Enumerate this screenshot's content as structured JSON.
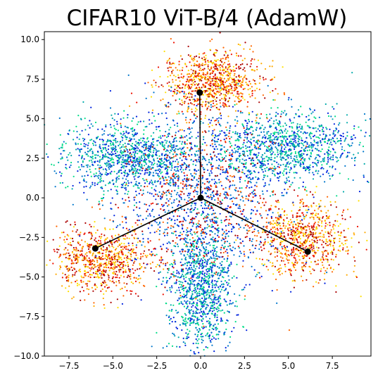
{
  "chart_data": {
    "type": "scatter",
    "title": "CIFAR10 ViT-B/4 (AdamW)",
    "xlabel": "",
    "ylabel": "",
    "xlim": [
      -8.9,
      9.7
    ],
    "ylim": [
      -10.0,
      10.5
    ],
    "grid": false,
    "x_ticks": [
      -7.5,
      -5.0,
      -2.5,
      0.0,
      2.5,
      5.0,
      7.5
    ],
    "x_tick_labels": [
      "−7.5",
      "−5.0",
      "−2.5",
      "0.0",
      "2.5",
      "5.0",
      "7.5"
    ],
    "y_ticks": [
      -10.0,
      -7.5,
      -5.0,
      -2.5,
      0.0,
      2.5,
      5.0,
      7.5,
      10.0
    ],
    "y_tick_labels": [
      "−10.0",
      "−7.5",
      "−5.0",
      "−2.5",
      "0.0",
      "2.5",
      "5.0",
      "7.5",
      "10.0"
    ],
    "colormap": [
      "#0022dd",
      "#0077cc",
      "#00aaaa",
      "#00dd88",
      "#ffe000",
      "#ffaa00",
      "#ff6600",
      "#ee1100",
      "#aa0000"
    ],
    "point_clusters": [
      {
        "label": "top",
        "center": [
          0.6,
          7.3
        ],
        "spread": [
          1.4,
          1.0
        ],
        "color_range": [
          4,
          8
        ],
        "count": 900
      },
      {
        "label": "lower-left",
        "center": [
          -5.6,
          -3.9
        ],
        "spread": [
          1.4,
          1.0
        ],
        "color_range": [
          4,
          8
        ],
        "count": 800
      },
      {
        "label": "lower-right",
        "center": [
          5.8,
          -2.6
        ],
        "spread": [
          1.3,
          1.2
        ],
        "color_range": [
          4,
          8
        ],
        "count": 800
      },
      {
        "label": "upper-left arm",
        "center": [
          -4.0,
          2.6
        ],
        "spread": [
          2.0,
          1.1
        ],
        "color_range": [
          0,
          3
        ],
        "count": 1100
      },
      {
        "label": "upper-right arm",
        "center": [
          4.8,
          3.2
        ],
        "spread": [
          2.0,
          1.1
        ],
        "color_range": [
          0,
          3
        ],
        "count": 1100
      },
      {
        "label": "bottom arm",
        "center": [
          0.0,
          -5.6
        ],
        "spread": [
          0.9,
          2.2
        ],
        "color_range": [
          0,
          3
        ],
        "count": 1100
      },
      {
        "label": "inner blue",
        "center": [
          0.0,
          0.0
        ],
        "spread": [
          2.6,
          2.6
        ],
        "color_range": [
          0,
          1
        ],
        "count": 900
      },
      {
        "label": "inner red",
        "center": [
          0.0,
          0.0
        ],
        "spread": [
          2.4,
          2.4
        ],
        "color_range": [
          6,
          8
        ],
        "count": 500
      }
    ],
    "overlay": {
      "color": "#000000",
      "center": [
        0.0,
        0.0
      ],
      "endpoints": [
        [
          -0.05,
          6.65
        ],
        [
          -6.0,
          -3.2
        ],
        [
          6.1,
          -3.4
        ]
      ]
    }
  }
}
